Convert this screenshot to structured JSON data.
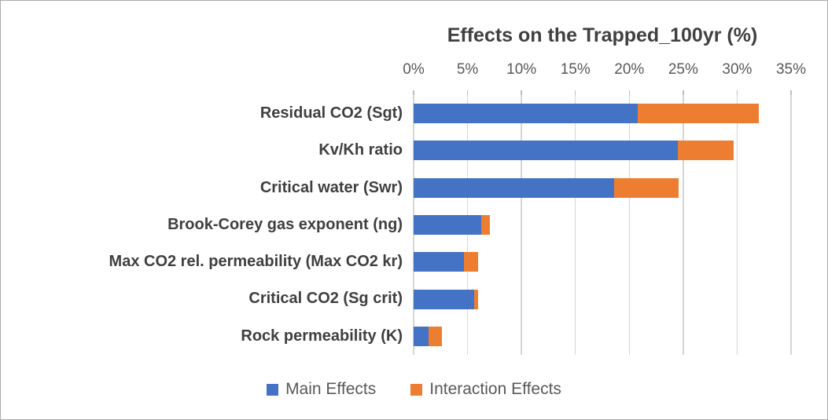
{
  "chart_data": {
    "type": "bar",
    "orientation": "horizontal",
    "stacked": true,
    "title": "Effects on the Trapped_100yr (%)",
    "categories": [
      "Residual CO2 (Sgt)",
      "Kv/Kh ratio",
      "Critical water (Swr)",
      "Brook-Corey gas exponent (ng)",
      "Max CO2 rel. permeability (Max CO2 kr)",
      "Critical CO2 (Sg crit)",
      "Rock permeability (K)"
    ],
    "series": [
      {
        "name": "Main Effects",
        "color": "#4472C4",
        "values": [
          20.8,
          24.5,
          18.6,
          6.3,
          4.7,
          5.6,
          1.4
        ]
      },
      {
        "name": "Interaction Effects",
        "color": "#ED7D31",
        "values": [
          11.2,
          5.2,
          6.0,
          0.8,
          1.3,
          0.4,
          1.2
        ]
      }
    ],
    "xlim": [
      0,
      35
    ],
    "xtick_values": [
      0,
      5,
      10,
      15,
      20,
      25,
      30,
      35
    ],
    "xtick_labels": [
      "0%",
      "5%",
      "10%",
      "15%",
      "20%",
      "25%",
      "30%",
      "35%"
    ],
    "grid": "vertical",
    "legend_position": "bottom"
  }
}
